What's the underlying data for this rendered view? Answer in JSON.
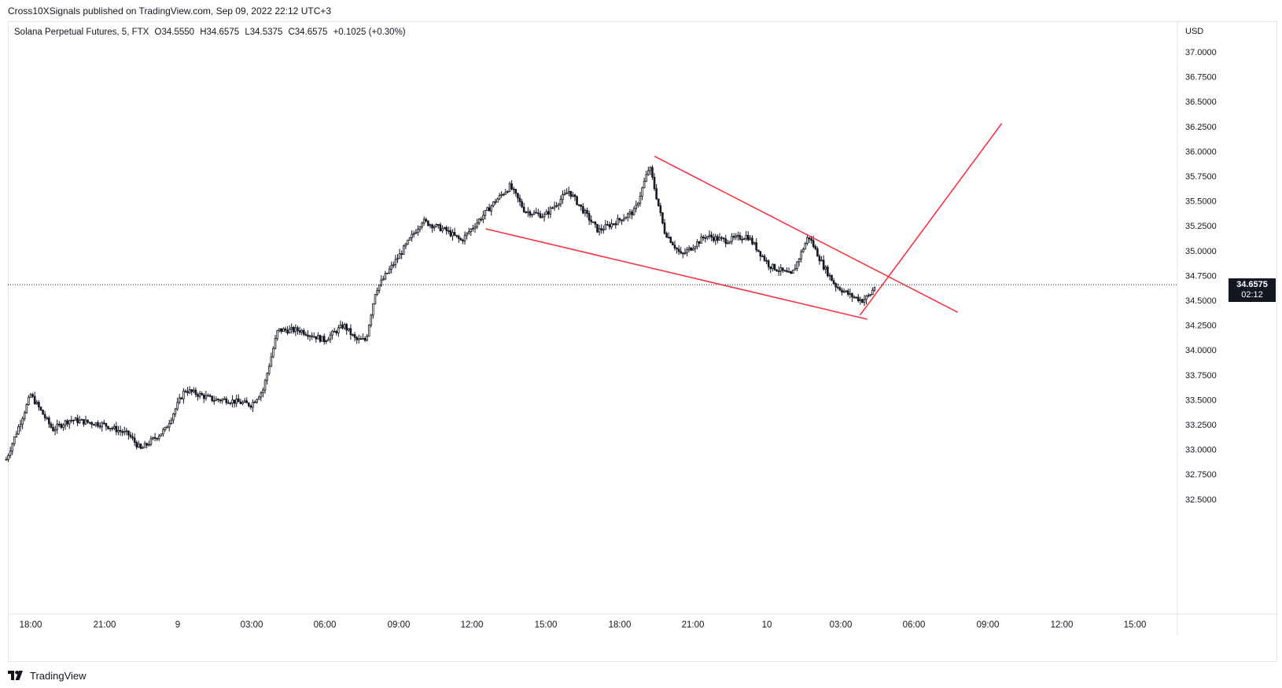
{
  "header": {
    "publisher_line": "Cross10XSignals published on TradingView.com, Sep 09, 2022 22:12 UTC+3"
  },
  "symbol": {
    "name": "Solana Perpetual Futures, 5, FTX",
    "open": "O34.5550",
    "high": "H34.6575",
    "low": "L34.5375",
    "close": "C34.6575",
    "change": "+0.1025 (+0.30%)"
  },
  "price_badge": {
    "price": "34.6575",
    "countdown": "02:12"
  },
  "footer": {
    "brand": "TradingView"
  },
  "colors": {
    "candle": "#131722",
    "trendline": "#f23645",
    "grid": "#e0e3eb",
    "axis_text": "#131722"
  },
  "chart_data": {
    "type": "candlestick",
    "currency_label": "USD",
    "ylim": [
      32.4,
      37.3
    ],
    "y_ticks": [
      "37.0000",
      "36.7500",
      "36.5000",
      "36.2500",
      "36.0000",
      "35.7500",
      "35.5000",
      "35.2500",
      "35.0000",
      "34.7500",
      "34.5000",
      "34.2500",
      "34.0000",
      "33.7500",
      "33.5000",
      "33.2500",
      "33.0000",
      "32.7500",
      "32.5000"
    ],
    "x_ticks": [
      "18:00",
      "21:00",
      "9",
      "03:00",
      "06:00",
      "09:00",
      "12:00",
      "15:00",
      "18:00",
      "21:00",
      "10",
      "03:00",
      "06:00",
      "09:00",
      "12:00",
      "15:00"
    ],
    "x_range_hours": [
      17.0,
      64.7
    ],
    "last_price": 34.6575,
    "key_points": [
      {
        "t": 17.0,
        "p": 32.9
      },
      {
        "t": 18.0,
        "p": 33.55
      },
      {
        "t": 18.9,
        "p": 33.2
      },
      {
        "t": 19.6,
        "p": 33.3
      },
      {
        "t": 21.0,
        "p": 33.25
      },
      {
        "t": 22.0,
        "p": 33.15
      },
      {
        "t": 22.5,
        "p": 33.0
      },
      {
        "t": 23.5,
        "p": 33.2
      },
      {
        "t": 24.3,
        "p": 33.6
      },
      {
        "t": 25.5,
        "p": 33.5
      },
      {
        "t": 26.0,
        "p": 33.5
      },
      {
        "t": 27.0,
        "p": 33.45
      },
      {
        "t": 27.5,
        "p": 33.6
      },
      {
        "t": 28.1,
        "p": 34.2
      },
      {
        "t": 29.0,
        "p": 34.2
      },
      {
        "t": 30.0,
        "p": 34.1
      },
      {
        "t": 30.8,
        "p": 34.25
      },
      {
        "t": 31.3,
        "p": 34.1
      },
      {
        "t": 31.7,
        "p": 34.1
      },
      {
        "t": 32.1,
        "p": 34.6
      },
      {
        "t": 33.2,
        "p": 35.0
      },
      {
        "t": 34.0,
        "p": 35.3
      },
      {
        "t": 35.0,
        "p": 35.2
      },
      {
        "t": 35.6,
        "p": 35.1
      },
      {
        "t": 36.3,
        "p": 35.3
      },
      {
        "t": 37.0,
        "p": 35.5
      },
      {
        "t": 37.6,
        "p": 35.65
      },
      {
        "t": 38.2,
        "p": 35.4
      },
      {
        "t": 39.0,
        "p": 35.35
      },
      {
        "t": 40.0,
        "p": 35.6
      },
      {
        "t": 40.6,
        "p": 35.4
      },
      {
        "t": 41.2,
        "p": 35.2
      },
      {
        "t": 42.0,
        "p": 35.3
      },
      {
        "t": 42.7,
        "p": 35.4
      },
      {
        "t": 43.3,
        "p": 35.85
      },
      {
        "t": 43.9,
        "p": 35.2
      },
      {
        "t": 44.6,
        "p": 34.95
      },
      {
        "t": 45.6,
        "p": 35.15
      },
      {
        "t": 46.4,
        "p": 35.1
      },
      {
        "t": 47.3,
        "p": 35.15
      },
      {
        "t": 48.2,
        "p": 34.85
      },
      {
        "t": 49.1,
        "p": 34.75
      },
      {
        "t": 49.8,
        "p": 35.15
      },
      {
        "t": 50.4,
        "p": 34.85
      },
      {
        "t": 50.9,
        "p": 34.65
      },
      {
        "t": 51.5,
        "p": 34.55
      },
      {
        "t": 52.0,
        "p": 34.5
      },
      {
        "t": 52.3,
        "p": 34.55
      },
      {
        "t": 52.55,
        "p": 34.6575
      }
    ],
    "trendlines": [
      {
        "name": "upper",
        "from": {
          "t": 43.5,
          "p": 35.95
        },
        "to": {
          "t": 55.9,
          "p": 34.38
        }
      },
      {
        "name": "lower",
        "from": {
          "t": 36.6,
          "p": 35.22
        },
        "to": {
          "t": 52.2,
          "p": 34.31
        }
      },
      {
        "name": "breakout",
        "from": {
          "t": 51.9,
          "p": 34.35
        },
        "to": {
          "t": 57.7,
          "p": 36.28
        }
      }
    ]
  }
}
